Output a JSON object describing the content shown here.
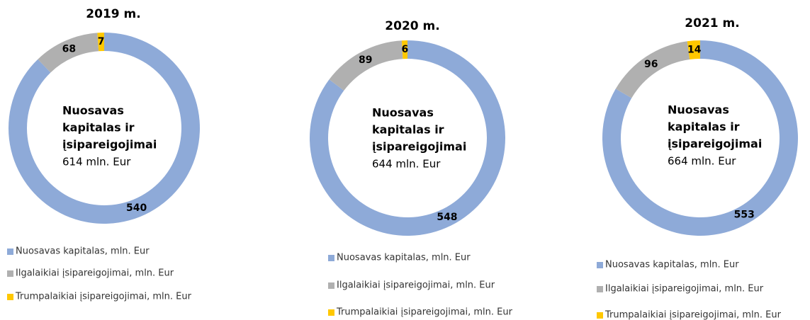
{
  "chart_data": [
    {
      "type": "pie",
      "title": "2019 m.",
      "center_title": [
        "Nuosavas",
        "kapitalas ir",
        "įsipareigojimai"
      ],
      "center_value": "614 mln. Eur",
      "categories": [
        "Nuosavas kapitalas, mln. Eur",
        "Ilgalaikiai įsipareigojimai, mln. Eur",
        "Trumpalaikiai įsipareigojimai, mln. Eur"
      ],
      "values": [
        540,
        68,
        7
      ],
      "colors": [
        "#8eaad8",
        "#b0b0b0",
        "#ffc800"
      ]
    },
    {
      "type": "pie",
      "title": "2020 m.",
      "center_title": [
        "Nuosavas",
        "kapitalas ir",
        "įsipareigojimai"
      ],
      "center_value": "644 mln. Eur",
      "categories": [
        "Nuosavas kapitalas, mln. Eur",
        "Ilgalaikiai įsipareigojimai, mln. Eur",
        "Trumpalaikiai įsipareigojimai, mln. Eur"
      ],
      "values": [
        548,
        89,
        6
      ],
      "colors": [
        "#8eaad8",
        "#b0b0b0",
        "#ffc800"
      ]
    },
    {
      "type": "pie",
      "title": "2021 m.",
      "center_title": [
        "Nuosavas",
        "kapitalas ir",
        "įsipareigojimai"
      ],
      "center_value": "664 mln. Eur",
      "categories": [
        "Nuosavas kapitalas, mln. Eur",
        "Ilgalaikiai įsipareigojimai, mln. Eur",
        "Trumpalaikiai įsipareigojimai, mln. Eur"
      ],
      "values": [
        553,
        96,
        14
      ],
      "colors": [
        "#8eaad8",
        "#b0b0b0",
        "#ffc800"
      ]
    }
  ]
}
